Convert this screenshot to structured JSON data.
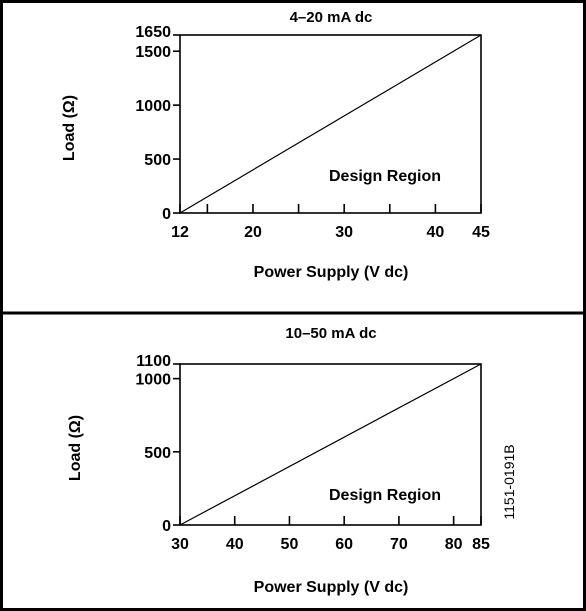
{
  "figure_id": "1151-0191B",
  "chart_data": [
    {
      "type": "line",
      "title": "4–20 mA dc",
      "xlabel": "Power Supply (V dc)",
      "ylabel": "Load (Ω)",
      "region_label": "Design Region",
      "xlim": [
        12,
        45
      ],
      "ylim": [
        0,
        1650
      ],
      "x_ticks": [
        12,
        20,
        30,
        40,
        45
      ],
      "x_minor_ticks": [
        15,
        25,
        35
      ],
      "y_ticks": [
        0,
        500,
        1000,
        1500,
        1650
      ],
      "series": [
        {
          "x": [
            12,
            45
          ],
          "y": [
            0,
            1650
          ]
        }
      ],
      "grid": false
    },
    {
      "type": "line",
      "title": "10–50 mA dc",
      "xlabel": "Power Supply (V dc)",
      "ylabel": "Load (Ω)",
      "region_label": "Design Region",
      "xlim": [
        30,
        85
      ],
      "ylim": [
        0,
        1100
      ],
      "x_ticks": [
        30,
        40,
        50,
        60,
        70,
        80,
        85
      ],
      "x_minor_ticks": [],
      "y_ticks": [
        0,
        500,
        1000,
        1100
      ],
      "series": [
        {
          "x": [
            30,
            85
          ],
          "y": [
            0,
            1100
          ]
        }
      ],
      "grid": false
    }
  ]
}
